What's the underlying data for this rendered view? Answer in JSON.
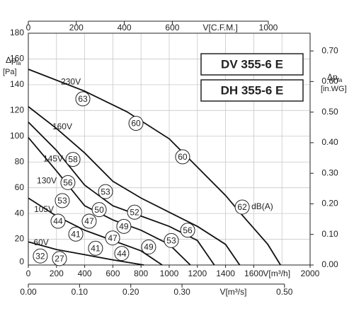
{
  "chart_data": {
    "type": "line",
    "models": [
      "DV 355-6 E",
      "DH 355-6 E"
    ],
    "xlim": [
      0,
      2000
    ],
    "xticks": [
      0,
      200,
      400,
      600,
      800,
      1000,
      1200,
      1400,
      1600,
      2000
    ],
    "x_grid_step": 200,
    "x_label": "V[m³/h]",
    "ylim": [
      0,
      180
    ],
    "yticks": [
      0,
      20,
      40,
      60,
      80,
      100,
      120,
      140,
      160,
      180
    ],
    "y_label": "Δp",
    "y_label_sub": "fa",
    "y_unit": "[Pa]",
    "y2lim": [
      0,
      0.758
    ],
    "y2ticks": [
      {
        "value": 0,
        "label": "0.00"
      },
      {
        "value": 0.1,
        "label": "0.10"
      },
      {
        "value": 0.2,
        "label": "0.20"
      },
      {
        "value": 0.3,
        "label": "0.30"
      },
      {
        "value": 0.4,
        "label": "0.40"
      },
      {
        "value": 0.5,
        "label": "0.50"
      },
      {
        "value": 0.6,
        "label": "0.60"
      },
      {
        "value": 0.7,
        "label": "0.70"
      }
    ],
    "y2_label": "Δp",
    "y2_label_sub": "fa",
    "y2_unit": "[in.WG]",
    "cfm_lim": [
      0,
      1174
    ],
    "cfm_ticks": [
      0,
      200,
      400,
      600,
      1000
    ],
    "cfm_label": "V[C.F.M.]",
    "m3s_lim": [
      0,
      0.55
    ],
    "m3s_ticks": [
      {
        "value": 0,
        "label": "0.00"
      },
      {
        "value": 0.1,
        "label": "0.10"
      },
      {
        "value": 0.2,
        "label": "0.20"
      },
      {
        "value": 0.3,
        "label": "0.30"
      },
      {
        "value": 0.5,
        "label": "0.50"
      }
    ],
    "m3s_label": "V[m³/s]",
    "grid": true,
    "series": [
      {
        "name": "230V",
        "color": "#111111",
        "x": [
          0,
          400,
          700,
          1000,
          1200,
          1400,
          1500,
          1700,
          1790
        ],
        "values": [
          152,
          135,
          119,
          98,
          76,
          54,
          41,
          16,
          0
        ],
        "label_x": 302,
        "label_y": 142
      },
      {
        "name": "160V",
        "color": "#111111",
        "x": [
          0,
          200,
          400,
          600,
          800,
          1000,
          1200,
          1400,
          1500
        ],
        "values": [
          123,
          106,
          87,
          65,
          52,
          41,
          30,
          16,
          0
        ],
        "label_x": 241,
        "label_y": 107
      },
      {
        "name": "145V",
        "color": "#111111",
        "x": [
          0,
          200,
          400,
          600,
          800,
          1000,
          1200,
          1320
        ],
        "values": [
          111,
          89,
          62,
          46,
          38,
          30,
          19,
          0
        ],
        "label_x": 176,
        "label_y": 82
      },
      {
        "name": "130V",
        "color": "#111111",
        "x": [
          0,
          200,
          400,
          600,
          800,
          1000,
          1150
        ],
        "values": [
          99,
          73,
          46,
          35,
          27,
          16,
          0
        ],
        "label_x": 131,
        "label_y": 65
      },
      {
        "name": "105V",
        "color": "#111111",
        "x": [
          0,
          200,
          400,
          600,
          800,
          950
        ],
        "values": [
          52,
          38,
          27,
          19,
          11,
          0
        ],
        "label_x": 111,
        "label_y": 43
      },
      {
        "name": "60V",
        "color": "#111111",
        "x": [
          0,
          200,
          400,
          600,
          820
        ],
        "values": [
          18,
          12,
          8,
          4,
          0
        ],
        "label_x": 91,
        "label_y": 17
      }
    ],
    "db_unit": "dB(A)",
    "db_labels": [
      {
        "text": "63",
        "x": 387,
        "y": 129
      },
      {
        "text": "60",
        "x": 764,
        "y": 110
      },
      {
        "text": "60",
        "x": 1095,
        "y": 84
      },
      {
        "text": "62",
        "x": 1518,
        "y": 45
      },
      {
        "text": "58",
        "x": 317,
        "y": 82
      },
      {
        "text": "56",
        "x": 281,
        "y": 64
      },
      {
        "text": "53",
        "x": 548,
        "y": 57
      },
      {
        "text": "53",
        "x": 241,
        "y": 50
      },
      {
        "text": "50",
        "x": 503,
        "y": 43
      },
      {
        "text": "52",
        "x": 754,
        "y": 41
      },
      {
        "text": "44",
        "x": 211,
        "y": 34
      },
      {
        "text": "47",
        "x": 432,
        "y": 34
      },
      {
        "text": "49",
        "x": 678,
        "y": 30
      },
      {
        "text": "56",
        "x": 1131,
        "y": 27
      },
      {
        "text": "41",
        "x": 337,
        "y": 24
      },
      {
        "text": "47",
        "x": 598,
        "y": 21
      },
      {
        "text": "53",
        "x": 1015,
        "y": 19
      },
      {
        "text": "41",
        "x": 477,
        "y": 13
      },
      {
        "text": "49",
        "x": 854,
        "y": 14
      },
      {
        "text": "44",
        "x": 663,
        "y": 9
      },
      {
        "text": "32",
        "x": 85,
        "y": 7
      },
      {
        "text": "27",
        "x": 221,
        "y": 5
      }
    ]
  }
}
